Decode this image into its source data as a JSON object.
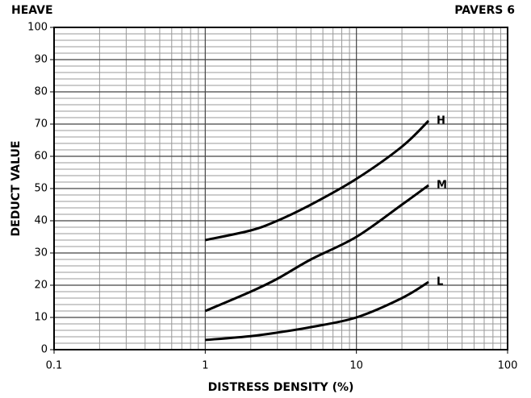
{
  "chart_data": {
    "type": "line",
    "title": "HEAVE",
    "subtitle": "PAVERS 6",
    "x_label": "DISTRESS DENSITY (%)",
    "y_label": "DEDUCT VALUE",
    "log_x": true,
    "grid": true,
    "x": [
      1,
      2,
      3,
      5,
      10,
      20,
      30
    ],
    "series": [
      {
        "name": "H",
        "color": "#000000",
        "values": [
          34,
          37,
          40,
          45,
          53,
          63,
          71
        ]
      },
      {
        "name": "M",
        "color": "#000000",
        "values": [
          12,
          18,
          22,
          28,
          35,
          45,
          51
        ]
      },
      {
        "name": "L",
        "color": "#000000",
        "values": [
          3,
          4.2,
          5.3,
          7,
          10,
          16,
          21
        ]
      }
    ],
    "xlim": [
      0.1,
      100
    ],
    "xticks": [
      0.1,
      1,
      10,
      100
    ],
    "x_minor_ticks": [
      0.2,
      0.3,
      0.4,
      0.5,
      0.6,
      0.7,
      0.8,
      0.9,
      2,
      3,
      4,
      5,
      6,
      7,
      8,
      9,
      20,
      30,
      40,
      50,
      60,
      70,
      80,
      90
    ],
    "ylim": [
      0,
      100
    ],
    "yticks": [
      0,
      10,
      20,
      30,
      40,
      50,
      60,
      70,
      80,
      90,
      100
    ],
    "y_minor_ticks": [
      2,
      4,
      6,
      8,
      12,
      14,
      16,
      18,
      22,
      24,
      26,
      28,
      32,
      34,
      36,
      38,
      42,
      44,
      46,
      48,
      52,
      54,
      56,
      58,
      62,
      64,
      66,
      68,
      72,
      74,
      76,
      78,
      82,
      84,
      86,
      88,
      92,
      94,
      96,
      98
    ]
  }
}
